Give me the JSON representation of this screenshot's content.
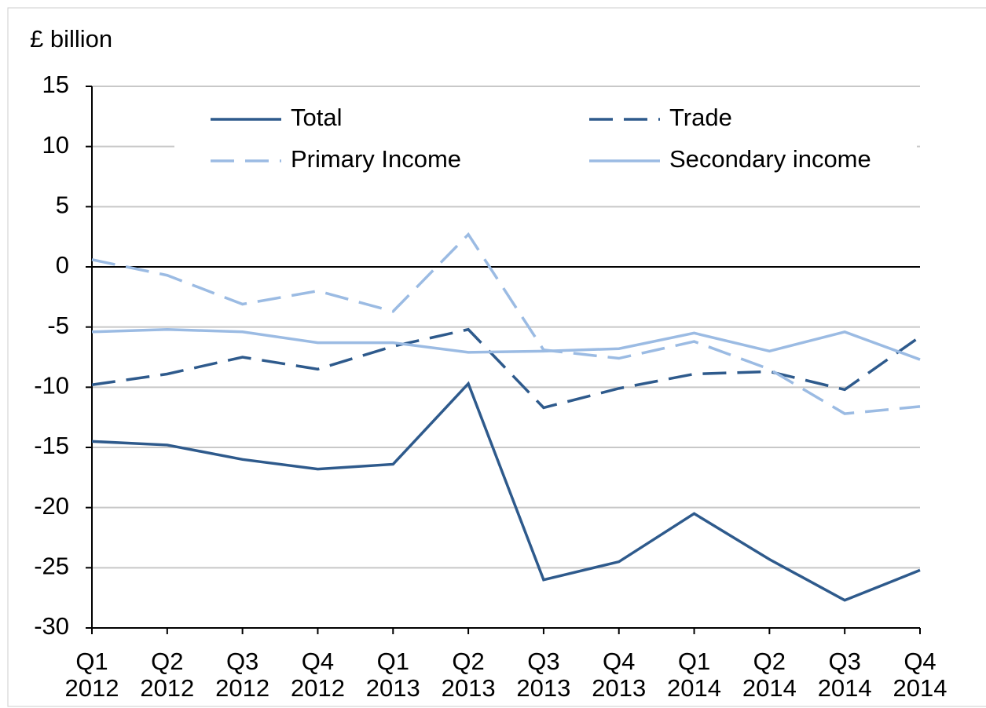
{
  "chart_data": {
    "type": "line",
    "y_label": "£ billion",
    "categories": [
      "Q1 2012",
      "Q2 2012",
      "Q3 2012",
      "Q4 2012",
      "Q1 2013",
      "Q2 2013",
      "Q3 2013",
      "Q4 2013",
      "Q1 2014",
      "Q2 2014",
      "Q3 2014",
      "Q4 2014"
    ],
    "series": [
      {
        "name": "Total",
        "color": "#2e5a8c",
        "dashed": false,
        "values": [
          -14.5,
          -14.8,
          -16.0,
          -16.8,
          -16.4,
          -9.7,
          -26.0,
          -24.5,
          -20.5,
          -24.3,
          -27.7,
          -25.2
        ]
      },
      {
        "name": "Trade",
        "color": "#2e5a8c",
        "dashed": true,
        "values": [
          -9.8,
          -8.9,
          -7.5,
          -8.5,
          -6.6,
          -5.2,
          -11.7,
          -10.1,
          -8.9,
          -8.7,
          -10.2,
          -5.8
        ]
      },
      {
        "name": "Primary Income",
        "color": "#9bbbe3",
        "dashed": true,
        "values": [
          0.6,
          -0.7,
          -3.1,
          -2.0,
          -3.7,
          2.7,
          -6.9,
          -7.6,
          -6.2,
          -8.5,
          -12.2,
          -11.6
        ]
      },
      {
        "name": "Secondary income",
        "color": "#9bbbe3",
        "dashed": false,
        "values": [
          -5.4,
          -5.2,
          -5.4,
          -6.3,
          -6.3,
          -7.1,
          -7.0,
          -6.8,
          -5.5,
          -7.0,
          -5.4,
          -7.7
        ]
      }
    ],
    "ylim": [
      -30,
      15
    ],
    "yticks": [
      -30,
      -25,
      -20,
      -15,
      -10,
      -5,
      0,
      5,
      10,
      15
    ],
    "grid": true
  }
}
